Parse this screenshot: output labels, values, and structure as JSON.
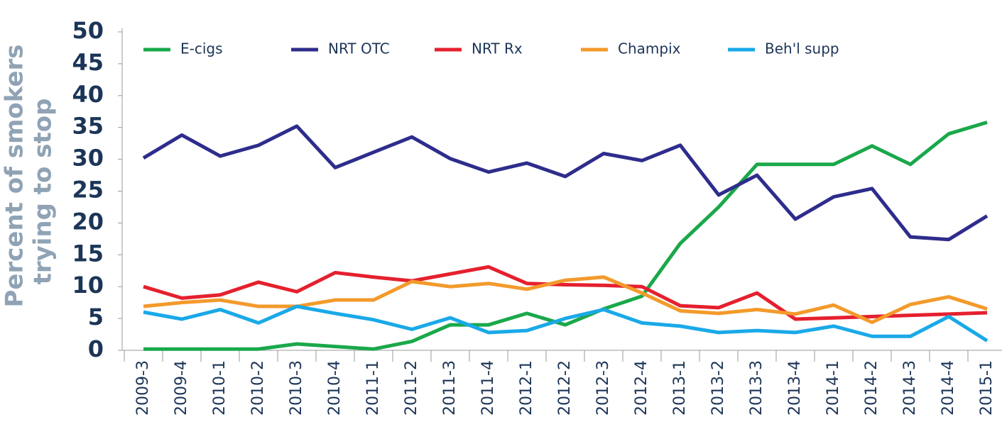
{
  "chart_data": {
    "type": "line",
    "ylabel": [
      "Percent of smokers",
      "trying to stop"
    ],
    "categories": [
      "2009-3",
      "2009-4",
      "2010-1",
      "2010-2",
      "2010-3",
      "2010-4",
      "2011-1",
      "2011-2",
      "2011-3",
      "2011-4",
      "2012-1",
      "2012-2",
      "2012-3",
      "2012-4",
      "2013-1",
      "2013-2",
      "2013-3",
      "2013-4",
      "2014-1",
      "2014-2",
      "2014-3",
      "2014-4",
      "2015-1"
    ],
    "series": [
      {
        "name": "E-cigs",
        "color": "#1aa84a",
        "values": [
          0.2,
          0.2,
          0.2,
          0.2,
          1,
          0.6,
          0.2,
          1.4,
          4,
          4,
          5.8,
          4,
          6.5,
          8.5,
          16.8,
          22.5,
          29.2,
          29.2,
          29.2,
          32.1,
          29.2,
          34,
          35.8
        ]
      },
      {
        "name": "NRT OTC",
        "color": "#2e2d8c",
        "values": [
          30.2,
          33.8,
          30.5,
          32.2,
          35.2,
          28.7,
          31.1,
          33.5,
          30.1,
          28,
          29.4,
          27.3,
          30.9,
          29.8,
          32.2,
          24.4,
          27.5,
          20.6,
          24.1,
          25.4,
          17.8,
          17.4,
          21.1
        ]
      },
      {
        "name": "NRT Rx",
        "color": "#e5202e",
        "values": [
          10,
          8.2,
          8.7,
          10.7,
          9.2,
          12.2,
          11.5,
          10.9,
          12,
          13.1,
          10.5,
          10.3,
          10.2,
          10,
          7,
          6.7,
          9,
          4.9,
          5.1,
          5.3,
          5.5,
          5.7,
          5.9
        ]
      },
      {
        "name": "Champix",
        "color": "#f39a2b",
        "values": [
          6.9,
          7.5,
          7.9,
          6.9,
          6.9,
          7.9,
          7.9,
          10.8,
          10,
          10.5,
          9.6,
          11,
          11.5,
          9,
          6.2,
          5.8,
          6.4,
          5.7,
          7.1,
          4.4,
          7.2,
          8.4,
          6.5
        ]
      },
      {
        "name": "Beh'l supp",
        "color": "#1aa9e8",
        "values": [
          6,
          4.9,
          6.4,
          4.3,
          6.9,
          5.8,
          4.8,
          3.3,
          5.1,
          2.8,
          3.1,
          5,
          6.4,
          4.3,
          3.8,
          2.8,
          3.1,
          2.8,
          3.8,
          2.2,
          2.2,
          5.3,
          1.5
        ]
      }
    ],
    "ylim": [
      0,
      50
    ],
    "yticks": [
      0,
      5,
      10,
      15,
      20,
      25,
      30,
      35,
      40,
      45,
      50
    ]
  }
}
